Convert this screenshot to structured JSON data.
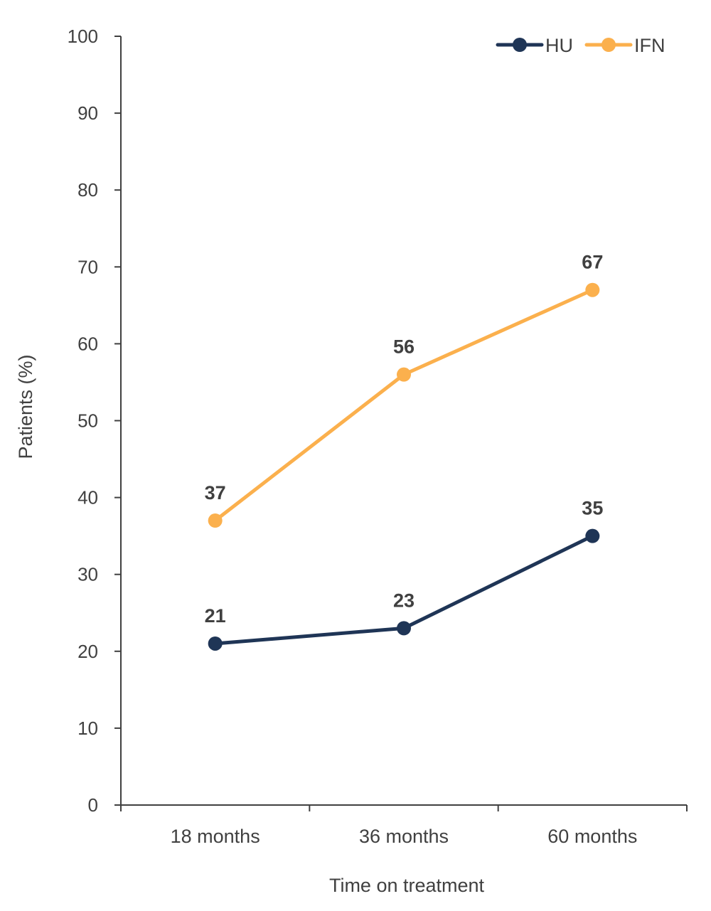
{
  "chart_data": {
    "type": "line",
    "title": "",
    "xlabel": "Time on treatment",
    "ylabel": "Patients (%)",
    "categories": [
      "18 months",
      "36 months",
      "60 months"
    ],
    "ylim": [
      0,
      100
    ],
    "yticks": [
      "0",
      "10",
      "20",
      "30",
      "40",
      "50",
      "60",
      "70",
      "80",
      "90",
      "100"
    ],
    "grid": false,
    "legend_position": "top-right",
    "series": [
      {
        "name": "HU",
        "color": "#1f3556",
        "values": [
          21,
          23,
          35
        ]
      },
      {
        "name": "IFN",
        "color": "#fbb04d",
        "values": [
          37,
          56,
          67
        ]
      }
    ]
  }
}
